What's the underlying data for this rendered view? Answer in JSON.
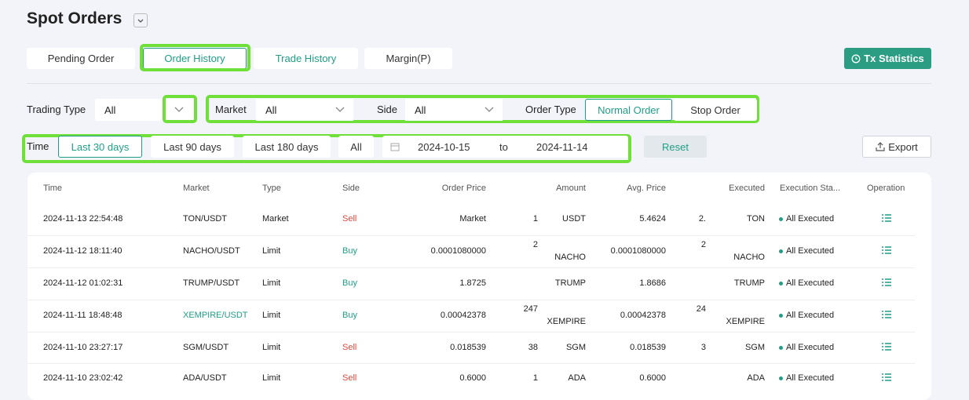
{
  "header": {
    "title": "Spot Orders"
  },
  "tabs": {
    "pending_order": "Pending Order",
    "order_history": "Order History",
    "trade_history": "Trade History",
    "margin": "Margin(P)"
  },
  "tx_statistics": "Tx Statistics",
  "filters": {
    "trading_type_label": "Trading Type",
    "trading_type_value": "All",
    "market_label": "Market",
    "market_value": "All",
    "side_label": "Side",
    "side_value": "All",
    "order_type_label": "Order Type",
    "order_types": [
      "Normal Order",
      "Stop Order"
    ],
    "time_label": "Time",
    "time_ranges": [
      "Last 30 days",
      "Last 90 days",
      "Last 180 days",
      "All"
    ],
    "start_date": "2024-10-15",
    "to": "to",
    "end_date": "2024-11-14",
    "reset": "Reset",
    "export": "Export"
  },
  "table": {
    "columns": [
      "Time",
      "Market",
      "Type",
      "Side",
      "Order Price",
      "Amount",
      "Avg. Price",
      "Executed",
      "Execution Sta...",
      "Operation"
    ],
    "rows": [
      {
        "time": "2024-11-13 22:54:48",
        "market": "TON/USDT",
        "type": "Market",
        "side": "Sell",
        "side_color": "#e5483c",
        "order_price": "Market",
        "amount": "1",
        "amount_unit": "USDT",
        "avg_price": "5.4624",
        "executed": "2.",
        "executed_unit": "TON",
        "status": "All Executed"
      },
      {
        "time": "2024-11-12 18:11:40",
        "market": "NACHO/USDT",
        "type": "Limit",
        "side": "Buy",
        "side_color": "#1f9e85",
        "order_price": "0.0001080000",
        "amount": "2",
        "amount_unit": "NACHO",
        "avg_price": "0.0001080000",
        "executed": "2",
        "executed_unit": "NACHO",
        "status": "All Executed"
      },
      {
        "time": "2024-11-12 01:02:31",
        "market": "TRUMP/USDT",
        "type": "Limit",
        "side": "Buy",
        "side_color": "#1f9e85",
        "order_price": "1.8725",
        "amount_unit": "TRUMP",
        "avg_price": "1.8686",
        "executed_unit": "TRUMP",
        "status": "All Executed"
      },
      {
        "time": "2024-11-11 18:48:48",
        "market": "XEMPIRE/USDT",
        "market_color": "#1f9e85",
        "type": "Limit",
        "side": "Buy",
        "side_color": "#1f9e85",
        "order_price": "0.00042378",
        "amount": "247",
        "amount_unit": "XEMPIRE",
        "avg_price": "0.00042378",
        "executed": "24",
        "executed_unit": "XEMPIRE",
        "status": "All Executed"
      },
      {
        "time": "2024-11-10 23:27:17",
        "market": "SGM/USDT",
        "type": "Limit",
        "side": "Sell",
        "side_color": "#e5483c",
        "order_price": "0.018539",
        "amount": "38",
        "amount_unit": "SGM",
        "avg_price": "0.018539",
        "executed": "3",
        "executed_unit": "SGM",
        "status": "All Executed"
      },
      {
        "time": "2024-11-10 23:02:42",
        "market": "ADA/USDT",
        "type": "Limit",
        "side": "Sell",
        "side_color": "#e5483c",
        "order_price": "0.6000",
        "amount": "1",
        "amount_unit": "ADA",
        "avg_price": "0.6000",
        "executed_unit": "ADA",
        "status": "All Executed"
      }
    ]
  }
}
